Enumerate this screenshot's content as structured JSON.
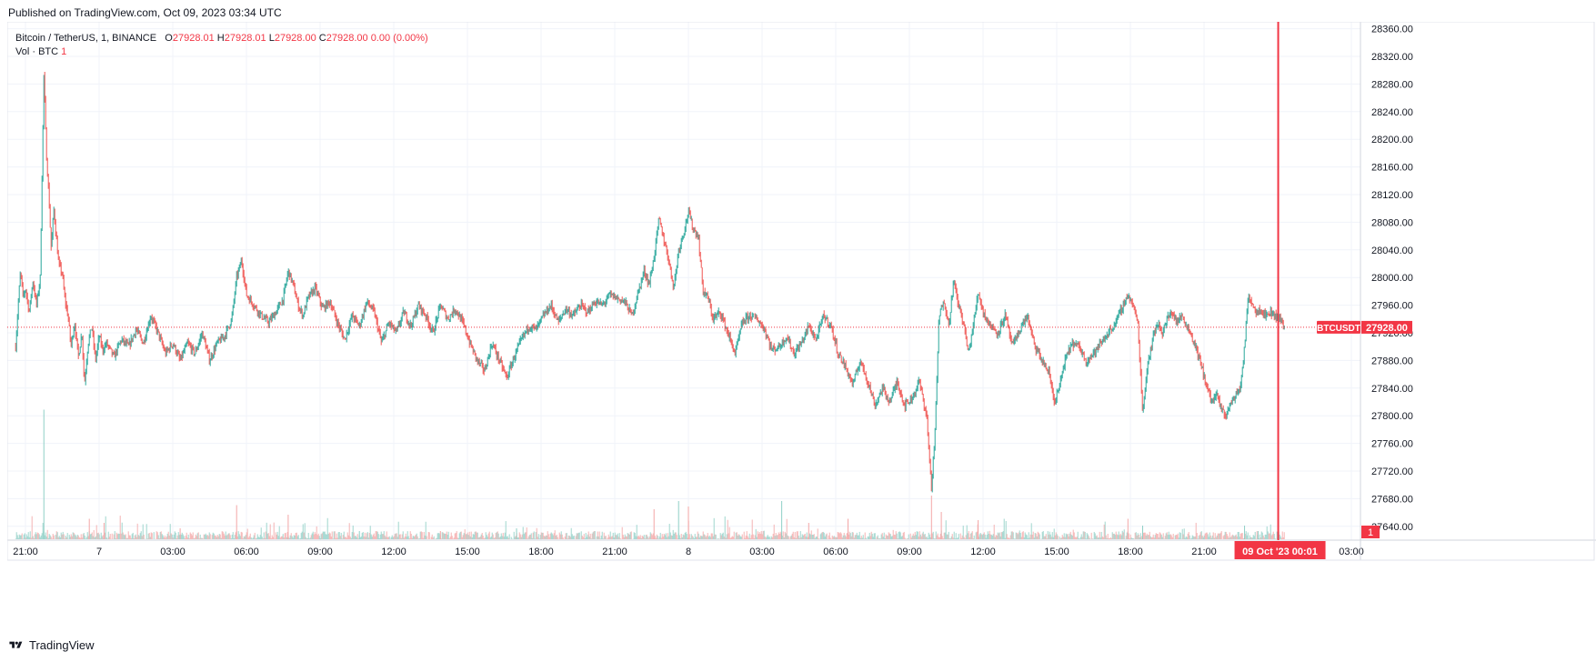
{
  "published": "Published on TradingView.com, Oct 09, 2023 03:34 UTC",
  "legend": {
    "symbol": "Bitcoin / TetherUS, 1, BINANCE",
    "o_label": "O",
    "o_value": "27928.01",
    "h_label": "H",
    "h_value": "27928.01",
    "l_label": "L",
    "l_value": "27928.00",
    "c_label": "C",
    "c_value": "27928.00",
    "change": "0.00 (0.00%)",
    "vol_label": "Vol · BTC",
    "vol_value": "1"
  },
  "footer": {
    "brand": "TradingView"
  },
  "colors": {
    "up": "#26a69a",
    "down": "#ef5350",
    "accent": "#f23645",
    "grid": "#f0f3fa",
    "axis_text": "#131722"
  },
  "chart_data": {
    "type": "candlestick",
    "symbol": "BTCUSDT",
    "interval": "1",
    "ylim": [
      27620,
      28370
    ],
    "y_ticks": [
      "28360.00",
      "28320.00",
      "28280.00",
      "28240.00",
      "28200.00",
      "28160.00",
      "28120.00",
      "28080.00",
      "28040.00",
      "28000.00",
      "27960.00",
      "27920.00",
      "27880.00",
      "27840.00",
      "27800.00",
      "27760.00",
      "27720.00",
      "27680.00",
      "27640.00"
    ],
    "x_ticks": [
      "21:00",
      "7",
      "03:00",
      "06:00",
      "09:00",
      "12:00",
      "15:00",
      "18:00",
      "21:00",
      "8",
      "03:00",
      "06:00",
      "09:00",
      "12:00",
      "15:00",
      "18:00",
      "21:00",
      "03:00"
    ],
    "x_tick_hours": [
      0,
      3,
      6,
      9,
      12,
      15,
      18,
      21,
      24,
      27,
      30,
      33,
      36,
      39,
      42,
      45,
      48,
      54
    ],
    "last_price": 27928.0,
    "last_price_label": "27928.00",
    "symbol_badge": "BTCUSDT",
    "volume_badge": "1",
    "crosshair_label": "09 Oct '23   00:01",
    "crosshair_hour": 51.02,
    "price_path": [
      [
        -0.4,
        27900
      ],
      [
        -0.3,
        27960
      ],
      [
        -0.2,
        28010
      ],
      [
        -0.1,
        27970
      ],
      [
        0.0,
        27985
      ],
      [
        0.15,
        27950
      ],
      [
        0.3,
        27995
      ],
      [
        0.45,
        27960
      ],
      [
        0.6,
        28000
      ],
      [
        0.75,
        28295
      ],
      [
        0.85,
        28180
      ],
      [
        0.95,
        28120
      ],
      [
        1.05,
        28040
      ],
      [
        1.15,
        28100
      ],
      [
        1.25,
        28060
      ],
      [
        1.35,
        28020
      ],
      [
        1.5,
        28005
      ],
      [
        1.6,
        27970
      ],
      [
        1.75,
        27940
      ],
      [
        1.85,
        27900
      ],
      [
        2.0,
        27935
      ],
      [
        2.15,
        27885
      ],
      [
        2.3,
        27920
      ],
      [
        2.4,
        27845
      ],
      [
        2.55,
        27905
      ],
      [
        2.7,
        27930
      ],
      [
        2.85,
        27880
      ],
      [
        3.0,
        27915
      ],
      [
        3.15,
        27895
      ],
      [
        3.3,
        27905
      ],
      [
        3.6,
        27885
      ],
      [
        3.9,
        27910
      ],
      [
        4.2,
        27900
      ],
      [
        4.5,
        27925
      ],
      [
        4.8,
        27905
      ],
      [
        5.1,
        27945
      ],
      [
        5.4,
        27920
      ],
      [
        5.7,
        27890
      ],
      [
        6.0,
        27905
      ],
      [
        6.3,
        27880
      ],
      [
        6.6,
        27905
      ],
      [
        6.9,
        27890
      ],
      [
        7.2,
        27920
      ],
      [
        7.5,
        27880
      ],
      [
        7.8,
        27905
      ],
      [
        8.1,
        27915
      ],
      [
        8.4,
        27940
      ],
      [
        8.6,
        28000
      ],
      [
        8.8,
        28025
      ],
      [
        9.0,
        27975
      ],
      [
        9.3,
        27960
      ],
      [
        9.6,
        27945
      ],
      [
        9.9,
        27935
      ],
      [
        10.2,
        27950
      ],
      [
        10.5,
        27970
      ],
      [
        10.7,
        28010
      ],
      [
        10.9,
        27990
      ],
      [
        11.1,
        27960
      ],
      [
        11.3,
        27945
      ],
      [
        11.5,
        27970
      ],
      [
        11.8,
        27985
      ],
      [
        12.1,
        27955
      ],
      [
        12.4,
        27965
      ],
      [
        12.7,
        27935
      ],
      [
        13.0,
        27910
      ],
      [
        13.3,
        27945
      ],
      [
        13.6,
        27930
      ],
      [
        13.9,
        27965
      ],
      [
        14.2,
        27950
      ],
      [
        14.5,
        27905
      ],
      [
        14.8,
        27935
      ],
      [
        15.1,
        27920
      ],
      [
        15.4,
        27950
      ],
      [
        15.7,
        27930
      ],
      [
        16.0,
        27960
      ],
      [
        16.3,
        27945
      ],
      [
        16.6,
        27920
      ],
      [
        16.9,
        27960
      ],
      [
        17.2,
        27940
      ],
      [
        17.5,
        27955
      ],
      [
        17.8,
        27935
      ],
      [
        18.1,
        27905
      ],
      [
        18.4,
        27880
      ],
      [
        18.7,
        27865
      ],
      [
        19.0,
        27905
      ],
      [
        19.3,
        27880
      ],
      [
        19.6,
        27855
      ],
      [
        19.9,
        27885
      ],
      [
        20.2,
        27910
      ],
      [
        20.5,
        27930
      ],
      [
        20.8,
        27925
      ],
      [
        21.1,
        27945
      ],
      [
        21.4,
        27960
      ],
      [
        21.7,
        27935
      ],
      [
        22.0,
        27955
      ],
      [
        22.3,
        27945
      ],
      [
        22.6,
        27960
      ],
      [
        22.9,
        27950
      ],
      [
        23.2,
        27965
      ],
      [
        23.5,
        27960
      ],
      [
        23.8,
        27975
      ],
      [
        24.1,
        27970
      ],
      [
        24.4,
        27965
      ],
      [
        24.7,
        27945
      ],
      [
        25.0,
        27985
      ],
      [
        25.2,
        28010
      ],
      [
        25.4,
        27990
      ],
      [
        25.6,
        28030
      ],
      [
        25.8,
        28085
      ],
      [
        26.0,
        28055
      ],
      [
        26.2,
        28025
      ],
      [
        26.4,
        27985
      ],
      [
        26.6,
        28040
      ],
      [
        26.8,
        28065
      ],
      [
        27.0,
        28095
      ],
      [
        27.2,
        28070
      ],
      [
        27.4,
        28060
      ],
      [
        27.6,
        27980
      ],
      [
        27.8,
        27970
      ],
      [
        28.0,
        27940
      ],
      [
        28.3,
        27950
      ],
      [
        28.6,
        27920
      ],
      [
        28.9,
        27890
      ],
      [
        29.2,
        27935
      ],
      [
        29.5,
        27945
      ],
      [
        29.8,
        27940
      ],
      [
        30.1,
        27925
      ],
      [
        30.4,
        27895
      ],
      [
        30.7,
        27900
      ],
      [
        31.0,
        27915
      ],
      [
        31.3,
        27890
      ],
      [
        31.6,
        27905
      ],
      [
        31.9,
        27930
      ],
      [
        32.2,
        27910
      ],
      [
        32.5,
        27945
      ],
      [
        32.8,
        27930
      ],
      [
        33.1,
        27890
      ],
      [
        33.4,
        27870
      ],
      [
        33.7,
        27845
      ],
      [
        34.0,
        27880
      ],
      [
        34.3,
        27850
      ],
      [
        34.6,
        27815
      ],
      [
        34.9,
        27840
      ],
      [
        35.2,
        27820
      ],
      [
        35.5,
        27850
      ],
      [
        35.8,
        27815
      ],
      [
        36.1,
        27825
      ],
      [
        36.4,
        27850
      ],
      [
        36.7,
        27800
      ],
      [
        36.9,
        27695
      ],
      [
        37.05,
        27780
      ],
      [
        37.2,
        27940
      ],
      [
        37.4,
        27970
      ],
      [
        37.6,
        27930
      ],
      [
        37.8,
        27995
      ],
      [
        38.0,
        27960
      ],
      [
        38.2,
        27935
      ],
      [
        38.4,
        27890
      ],
      [
        38.6,
        27930
      ],
      [
        38.8,
        27980
      ],
      [
        39.0,
        27950
      ],
      [
        39.3,
        27930
      ],
      [
        39.6,
        27920
      ],
      [
        39.9,
        27945
      ],
      [
        40.2,
        27900
      ],
      [
        40.5,
        27925
      ],
      [
        40.8,
        27945
      ],
      [
        41.1,
        27900
      ],
      [
        41.4,
        27880
      ],
      [
        41.7,
        27860
      ],
      [
        41.9,
        27820
      ],
      [
        42.1,
        27840
      ],
      [
        42.3,
        27875
      ],
      [
        42.6,
        27905
      ],
      [
        42.9,
        27900
      ],
      [
        43.2,
        27880
      ],
      [
        43.5,
        27890
      ],
      [
        43.8,
        27905
      ],
      [
        44.1,
        27920
      ],
      [
        44.4,
        27935
      ],
      [
        44.7,
        27960
      ],
      [
        44.9,
        27975
      ],
      [
        45.1,
        27960
      ],
      [
        45.3,
        27935
      ],
      [
        45.5,
        27805
      ],
      [
        45.7,
        27875
      ],
      [
        45.9,
        27910
      ],
      [
        46.1,
        27935
      ],
      [
        46.3,
        27920
      ],
      [
        46.5,
        27940
      ],
      [
        46.7,
        27950
      ],
      [
        46.9,
        27935
      ],
      [
        47.1,
        27945
      ],
      [
        47.3,
        27930
      ],
      [
        47.5,
        27915
      ],
      [
        47.7,
        27895
      ],
      [
        47.9,
        27870
      ],
      [
        48.1,
        27845
      ],
      [
        48.3,
        27820
      ],
      [
        48.5,
        27830
      ],
      [
        48.7,
        27810
      ],
      [
        48.9,
        27800
      ],
      [
        49.1,
        27820
      ],
      [
        49.3,
        27830
      ],
      [
        49.5,
        27845
      ],
      [
        49.65,
        27900
      ],
      [
        49.8,
        27975
      ],
      [
        49.95,
        27965
      ],
      [
        50.1,
        27950
      ],
      [
        50.3,
        27955
      ],
      [
        50.5,
        27945
      ],
      [
        50.7,
        27950
      ],
      [
        50.9,
        27945
      ],
      [
        51.1,
        27940
      ],
      [
        51.3,
        27928
      ]
    ],
    "volume_spikes": [
      [
        0.75,
        0.95
      ],
      [
        2.6,
        0.15
      ],
      [
        3.2,
        0.12
      ],
      [
        6.3,
        0.08
      ],
      [
        8.6,
        0.25
      ],
      [
        10.7,
        0.18
      ],
      [
        13.6,
        0.06
      ],
      [
        16.9,
        0.06
      ],
      [
        20.0,
        0.08
      ],
      [
        25.6,
        0.22
      ],
      [
        26.6,
        0.28
      ],
      [
        27.0,
        0.24
      ],
      [
        30.8,
        0.28
      ],
      [
        31.9,
        0.12
      ],
      [
        33.5,
        0.15
      ],
      [
        36.9,
        0.32
      ],
      [
        37.3,
        0.2
      ],
      [
        38.8,
        0.14
      ],
      [
        44.9,
        0.15
      ],
      [
        45.5,
        0.1
      ],
      [
        49.65,
        0.1
      ],
      [
        50.2,
        0.06
      ]
    ]
  }
}
